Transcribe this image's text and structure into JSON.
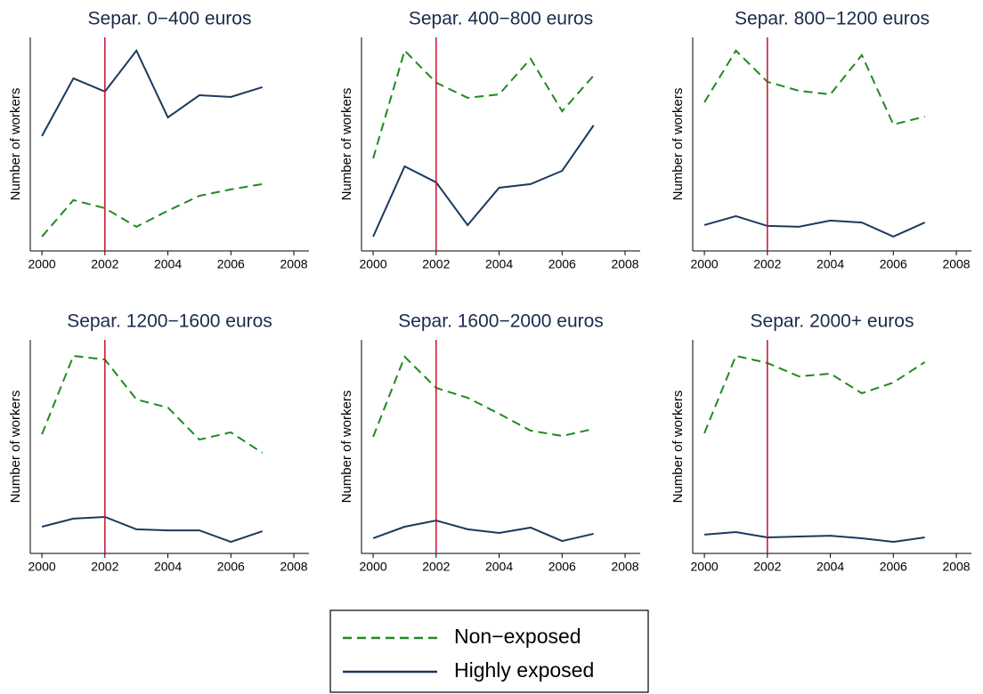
{
  "chart_data": [
    {
      "type": "line",
      "title": "Separ. 0−400 euros",
      "y_label": "Number of workers",
      "x": [
        2000,
        2001,
        2002,
        2003,
        2004,
        2005,
        2006,
        2007
      ],
      "series": [
        {
          "name": "Non−exposed",
          "color": "#1f8a1f",
          "style": "dashed",
          "values": [
            6.7,
            23.8,
            20,
            11.3,
            18.8,
            25.8,
            28.8,
            31.3
          ]
        },
        {
          "name": "Highly exposed",
          "color": "#1a3a5e",
          "style": "solid",
          "values": [
            53.8,
            80.8,
            74.6,
            93.8,
            62.5,
            72.9,
            72.1,
            76.7
          ]
        }
      ],
      "xlim": [
        1999.63,
        2008.48
      ],
      "xticks": [
        2000,
        2002,
        2004,
        2006,
        2008
      ],
      "ylim": [
        0,
        100
      ],
      "reference_x": 2002,
      "reference_color": "#c8102e"
    },
    {
      "type": "line",
      "title": "Separ. 400−800 euros",
      "y_label": "Number of workers",
      "x": [
        2000,
        2001,
        2002,
        2003,
        2004,
        2005,
        2006,
        2007
      ],
      "series": [
        {
          "name": "Non−exposed",
          "color": "#1f8a1f",
          "style": "dashed",
          "values": [
            43.3,
            93.8,
            78.8,
            71.7,
            73.3,
            90,
            65.4,
            82.1
          ]
        },
        {
          "name": "Highly exposed",
          "color": "#1a3a5e",
          "style": "solid",
          "values": [
            6.7,
            39.6,
            32.1,
            12.1,
            29.6,
            31.3,
            37.5,
            58.8
          ]
        }
      ],
      "xlim": [
        1999.63,
        2008.48
      ],
      "xticks": [
        2000,
        2002,
        2004,
        2006,
        2008
      ],
      "ylim": [
        0,
        100
      ],
      "reference_x": 2002,
      "reference_color": "#c8102e"
    },
    {
      "type": "line",
      "title": "Separ. 800−1200 euros",
      "y_label": "Number of workers",
      "x": [
        2000,
        2001,
        2002,
        2003,
        2004,
        2005,
        2006,
        2007
      ],
      "series": [
        {
          "name": "Non−exposed",
          "color": "#1f8a1f",
          "style": "dashed",
          "values": [
            69.6,
            93.8,
            79.2,
            75,
            73.3,
            91.7,
            59.2,
            62.9
          ]
        },
        {
          "name": "Highly exposed",
          "color": "#1a3a5e",
          "style": "solid",
          "values": [
            12.1,
            16.3,
            11.7,
            11.3,
            14.2,
            13.3,
            6.7,
            13.3
          ]
        }
      ],
      "xlim": [
        1999.63,
        2008.48
      ],
      "xticks": [
        2000,
        2002,
        2004,
        2006,
        2008
      ],
      "ylim": [
        0,
        100
      ],
      "reference_x": 2002,
      "reference_color": "#c8102e"
    },
    {
      "type": "line",
      "title": "Separ. 1200−1600 euros",
      "y_label": "Number of workers",
      "x": [
        2000,
        2001,
        2002,
        2003,
        2004,
        2005,
        2006,
        2007
      ],
      "series": [
        {
          "name": "Non−exposed",
          "color": "#1f8a1f",
          "style": "dashed",
          "values": [
            55.8,
            92.5,
            90.8,
            72.1,
            68.3,
            53.3,
            56.7,
            47.1
          ]
        },
        {
          "name": "Highly exposed",
          "color": "#1a3a5e",
          "style": "solid",
          "values": [
            12.5,
            16.3,
            17.1,
            11.3,
            10.8,
            10.8,
            5.4,
            10.4
          ]
        }
      ],
      "xlim": [
        1999.63,
        2008.48
      ],
      "xticks": [
        2000,
        2002,
        2004,
        2006,
        2008
      ],
      "ylim": [
        0,
        100
      ],
      "reference_x": 2002,
      "reference_color": "#c8102e"
    },
    {
      "type": "line",
      "title": "Separ. 1600−2000 euros",
      "y_label": "Number of workers",
      "x": [
        2000,
        2001,
        2002,
        2003,
        2004,
        2005,
        2006,
        2007
      ],
      "series": [
        {
          "name": "Non−exposed",
          "color": "#1f8a1f",
          "style": "dashed",
          "values": [
            54.6,
            92.1,
            77.5,
            72.9,
            65.4,
            57.5,
            55,
            58.3
          ]
        },
        {
          "name": "Highly exposed",
          "color": "#1a3a5e",
          "style": "solid",
          "values": [
            7.1,
            12.5,
            15.4,
            11.3,
            9.6,
            12.1,
            5.8,
            9.2
          ]
        }
      ],
      "xlim": [
        1999.63,
        2008.48
      ],
      "xticks": [
        2000,
        2002,
        2004,
        2006,
        2008
      ],
      "ylim": [
        0,
        100
      ],
      "reference_x": 2002,
      "reference_color": "#c8102e"
    },
    {
      "type": "line",
      "title": "Separ. 2000+ euros",
      "y_label": "Number of workers",
      "x": [
        2000,
        2001,
        2002,
        2003,
        2004,
        2005,
        2006,
        2007
      ],
      "series": [
        {
          "name": "Non−exposed",
          "color": "#1f8a1f",
          "style": "dashed",
          "values": [
            56.3,
            92.5,
            89.2,
            82.9,
            84.2,
            75,
            80,
            89.6
          ]
        },
        {
          "name": "Highly exposed",
          "color": "#1a3a5e",
          "style": "solid",
          "values": [
            8.8,
            10,
            7.5,
            7.9,
            8.3,
            7.1,
            5.4,
            7.5
          ]
        }
      ],
      "xlim": [
        1999.63,
        2008.48
      ],
      "xticks": [
        2000,
        2002,
        2004,
        2006,
        2008
      ],
      "ylim": [
        0,
        100
      ],
      "reference_x": 2002,
      "reference_color": "#c8102e"
    }
  ]
}
